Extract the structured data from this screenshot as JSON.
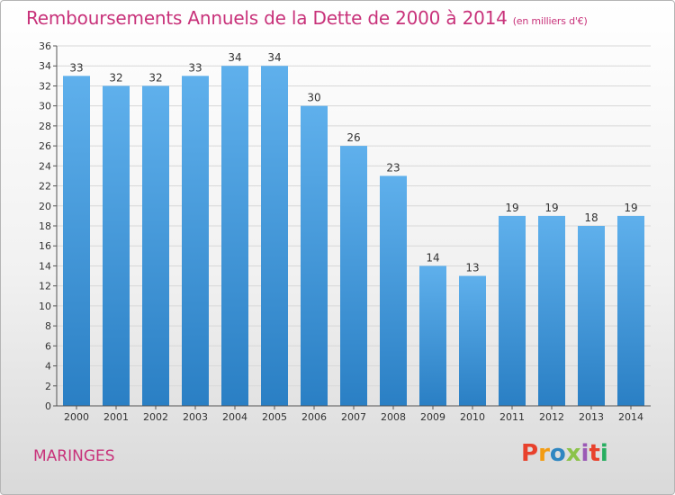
{
  "header": {
    "title": "Remboursements Annuels de la Dette de 2000 à 2014",
    "subtitle": "(en milliers d'€)"
  },
  "footer": {
    "town": "MARINGES",
    "logo_text": "Proxiti",
    "logo_colors": [
      "#e8412c",
      "#f39c12",
      "#2e86c1",
      "#8bc34a",
      "#9b59b6",
      "#e8412c",
      "#27ae60"
    ]
  },
  "colors": {
    "bar_top": "#5fb0ec",
    "bar_bottom": "#2a7fc4",
    "axis": "#555555",
    "grid": "#d8d8d8",
    "title": "#c8327a"
  },
  "chart_data": {
    "type": "bar",
    "title": "Remboursements Annuels de la Dette de 2000 à 2014",
    "subtitle": "(en milliers d'€)",
    "categories": [
      "2000",
      "2001",
      "2002",
      "2003",
      "2004",
      "2005",
      "2006",
      "2007",
      "2008",
      "2009",
      "2010",
      "2011",
      "2012",
      "2013",
      "2014"
    ],
    "values": [
      33,
      32,
      32,
      33,
      34,
      34,
      30,
      26,
      23,
      14,
      13,
      19,
      19,
      18,
      19
    ],
    "ylim": [
      0,
      36
    ],
    "yticks": [
      "0",
      "2",
      "4",
      "6",
      "8",
      "10",
      "12",
      "14",
      "16",
      "18",
      "20",
      "22",
      "24",
      "26",
      "28",
      "30",
      "32",
      "34",
      "36"
    ],
    "xlabel": "",
    "ylabel": "",
    "grid": true
  }
}
